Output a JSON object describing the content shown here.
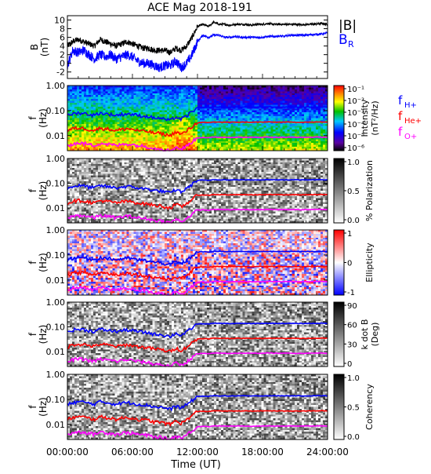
{
  "title": "ACE Mag 2018-191",
  "xaxis": {
    "label": "Time (UT)",
    "tick_labels": [
      "00:00:00",
      "06:00:00",
      "12:00:00",
      "18:00:00",
      "24:00:00"
    ],
    "range_hours": [
      0,
      24
    ]
  },
  "colors": {
    "total_field": "#000000",
    "radial_field": "#0000ff",
    "h_plus": "#0000ff",
    "he_plus": "#ff0000",
    "o_plus": "#ff00ff"
  },
  "chart_data": [
    {
      "type": "line",
      "panel": "magnetic-field",
      "ylabel": "B (nT)",
      "ylabel_line1": "B",
      "ylabel_line2": "(nT)",
      "ylim": [
        -3.5,
        11
      ],
      "y_tick_labels": [
        "10",
        "8",
        "6",
        "4",
        "2",
        "0",
        "-2"
      ],
      "legend": [
        {
          "text": "|B|",
          "color": "#000000"
        },
        {
          "text": "B",
          "subscript": "R",
          "color": "#0000ff"
        }
      ],
      "x_hours": [
        0,
        0.5,
        1,
        1.5,
        2,
        2.5,
        3,
        3.5,
        4,
        4.5,
        5,
        5.5,
        6,
        6.5,
        7,
        7.5,
        8,
        8.5,
        9,
        9.5,
        10,
        10.5,
        11,
        11.5,
        12,
        12.5,
        13,
        13.5,
        14,
        14.5,
        15,
        15.5,
        16,
        16.5,
        17,
        17.5,
        18,
        18.5,
        19,
        19.5,
        20,
        20.5,
        21,
        21.5,
        22,
        22.5,
        23,
        23.5,
        24
      ],
      "series": [
        {
          "name": "|B|",
          "values": [
            4.0,
            5.0,
            5.5,
            5.0,
            4.5,
            4.0,
            5.5,
            5.0,
            4.5,
            4.0,
            4.5,
            5.0,
            4.5,
            4.0,
            3.5,
            3.5,
            3.0,
            3.0,
            3.0,
            2.5,
            3.5,
            3.0,
            4.0,
            6.0,
            8.5,
            9.0,
            8.5,
            9.5,
            9.0,
            9.0,
            8.8,
            9.0,
            9.0,
            9.0,
            8.8,
            9.0,
            9.0,
            9.2,
            9.0,
            9.0,
            9.0,
            9.0,
            9.0,
            8.9,
            9.0,
            9.0,
            9.1,
            9.2,
            9.0
          ]
        },
        {
          "name": "B_R",
          "values": [
            -0.5,
            3.0,
            2.5,
            3.0,
            2.0,
            1.0,
            2.0,
            1.5,
            2.0,
            1.0,
            1.5,
            2.0,
            1.5,
            0.5,
            0.0,
            0.0,
            -0.5,
            -1.0,
            -0.5,
            -0.5,
            0.5,
            -1.0,
            0.0,
            2.0,
            5.0,
            6.5,
            6.0,
            6.5,
            6.5,
            6.0,
            6.0,
            6.2,
            6.0,
            6.0,
            6.0,
            6.0,
            6.0,
            6.2,
            6.2,
            6.3,
            6.2,
            6.5,
            6.5,
            6.5,
            6.5,
            6.6,
            6.7,
            6.8,
            7.0
          ]
        }
      ]
    },
    {
      "type": "heatmap",
      "panel": "power-spectral-density",
      "ylabel_line1": "f",
      "ylabel_line2": "(Hz)",
      "y_scale": "log",
      "y_tick_labels": [
        "1.00",
        "0.10",
        "0.01"
      ],
      "colorbar_label": "Intensity (nT²/Hz)",
      "colorbar_label_line1": "Intensity",
      "colorbar_label_line2": "(nT²/Hz)",
      "colorbar_ticks": [
        "10⁻¹",
        "10⁻²",
        "10⁻³",
        "10⁻⁴",
        "10⁻⁵",
        "10⁻⁶"
      ],
      "colormap": "rainbow",
      "annotations": [
        {
          "text": "f",
          "subscript": "H+",
          "color": "#0000ff"
        },
        {
          "text": "f",
          "subscript": "He+",
          "color": "#ff0000"
        },
        {
          "text": "f",
          "subscript": "O+",
          "color": "#ff00ff"
        }
      ]
    },
    {
      "type": "heatmap",
      "panel": "polarization",
      "ylabel_line1": "f",
      "ylabel_line2": "(Hz)",
      "y_scale": "log",
      "y_tick_labels": [
        "1.00",
        "0.10",
        "0.01"
      ],
      "colorbar_label": "% Polarization",
      "colorbar_ticks": [
        "1.0",
        "0.5",
        "0.0"
      ],
      "colormap": "gray"
    },
    {
      "type": "heatmap",
      "panel": "ellipticity",
      "ylabel_line1": "f",
      "ylabel_line2": "(Hz)",
      "y_scale": "log",
      "y_tick_labels": [
        "1.00",
        "0.10",
        "0.01"
      ],
      "colorbar_label": "Ellipticity",
      "colorbar_ticks": [
        "1",
        "0",
        "-1"
      ],
      "colormap": "blue-white-red"
    },
    {
      "type": "heatmap",
      "panel": "k-dot-b",
      "ylabel_line1": "f",
      "ylabel_line2": "(Hz)",
      "y_scale": "log",
      "y_tick_labels": [
        "1.00",
        "0.10",
        "0.01"
      ],
      "colorbar_label": "k dot B (Deg)",
      "colorbar_label_line1": "k dot B",
      "colorbar_label_line2": "(Deg)",
      "colorbar_ticks": [
        "90",
        "60",
        "30",
        "0"
      ],
      "colormap": "gray"
    },
    {
      "type": "heatmap",
      "panel": "coherency",
      "ylabel_line1": "f",
      "ylabel_line2": "(Hz)",
      "y_scale": "log",
      "y_tick_labels": [
        "1.00",
        "0.10",
        "0.01"
      ],
      "colorbar_label": "Coherency",
      "colorbar_ticks": [
        "1.0",
        "0.5",
        "0.0"
      ],
      "colormap": "gray"
    }
  ],
  "gyrofrequency_lines": {
    "x_hours": [
      0,
      0.5,
      1,
      1.5,
      2,
      2.5,
      3,
      3.5,
      4,
      4.5,
      5,
      5.5,
      6,
      6.5,
      7,
      7.5,
      8,
      8.5,
      9,
      9.5,
      10,
      10.5,
      11,
      11.5,
      12,
      12.5,
      13,
      13.5,
      14,
      14.5,
      15,
      15.5,
      16,
      16.5,
      17,
      17.5,
      18,
      18.5,
      19,
      19.5,
      20,
      20.5,
      21,
      21.5,
      22,
      22.5,
      23,
      23.5,
      24
    ],
    "series": [
      {
        "name": "fH+",
        "values": [
          0.06,
          0.075,
          0.08,
          0.078,
          0.07,
          0.065,
          0.08,
          0.075,
          0.07,
          0.065,
          0.07,
          0.075,
          0.07,
          0.065,
          0.06,
          0.058,
          0.05,
          0.05,
          0.045,
          0.04,
          0.055,
          0.045,
          0.06,
          0.09,
          0.13,
          0.135,
          0.13,
          0.14,
          0.138,
          0.138,
          0.135,
          0.138,
          0.138,
          0.138,
          0.135,
          0.138,
          0.138,
          0.14,
          0.138,
          0.138,
          0.138,
          0.138,
          0.138,
          0.137,
          0.138,
          0.138,
          0.139,
          0.14,
          0.138
        ]
      },
      {
        "name": "fHe+",
        "values": [
          0.015,
          0.019,
          0.02,
          0.0195,
          0.0175,
          0.016,
          0.02,
          0.019,
          0.0175,
          0.016,
          0.0175,
          0.019,
          0.0175,
          0.016,
          0.015,
          0.0145,
          0.0125,
          0.0125,
          0.011,
          0.01,
          0.014,
          0.011,
          0.015,
          0.0225,
          0.0325,
          0.034,
          0.0325,
          0.035,
          0.0345,
          0.0345,
          0.034,
          0.0345,
          0.0345,
          0.0345,
          0.034,
          0.0345,
          0.0345,
          0.035,
          0.0345,
          0.0345,
          0.0345,
          0.0345,
          0.0345,
          0.034,
          0.0345,
          0.0345,
          0.0347,
          0.035,
          0.0345
        ]
      },
      {
        "name": "fO+",
        "values": [
          0.0038,
          0.0047,
          0.005,
          0.0049,
          0.0044,
          0.004,
          0.005,
          0.0047,
          0.0044,
          0.004,
          0.0044,
          0.0047,
          0.0044,
          0.004,
          0.0038,
          0.0036,
          0.0031,
          0.0031,
          0.0028,
          0.0025,
          0.0035,
          0.0028,
          0.0038,
          0.0056,
          0.0081,
          0.0085,
          0.0081,
          0.0088,
          0.0086,
          0.0086,
          0.0085,
          0.0086,
          0.0086,
          0.0086,
          0.0085,
          0.0086,
          0.0086,
          0.0088,
          0.0086,
          0.0086,
          0.0086,
          0.0086,
          0.0086,
          0.0085,
          0.0086,
          0.0086,
          0.0087,
          0.0088,
          0.0086
        ]
      }
    ]
  }
}
